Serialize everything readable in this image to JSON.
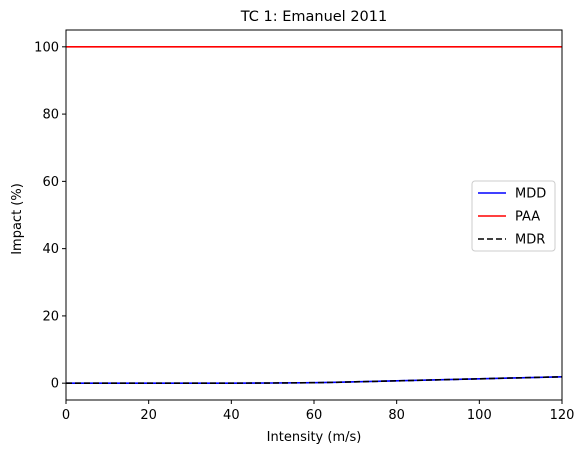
{
  "chart_data": {
    "type": "line",
    "title": "TC 1: Emanuel 2011",
    "xlabel": "Intensity (m/s)",
    "ylabel": "Impact (%)",
    "xlim": [
      0,
      120
    ],
    "ylim": [
      -5,
      105
    ],
    "xticks": [
      0,
      20,
      40,
      60,
      80,
      100,
      120
    ],
    "yticks": [
      0,
      20,
      40,
      60,
      80,
      100
    ],
    "grid": false,
    "legend_position": "center-right",
    "x": [
      0,
      10,
      20,
      30,
      40,
      50,
      60,
      65,
      70,
      80,
      90,
      100,
      110,
      120
    ],
    "series": [
      {
        "name": "MDD",
        "color": "#0000ff",
        "dash": "solid",
        "values": [
          0,
          0,
          0,
          0,
          0,
          0.05,
          0.15,
          0.25,
          0.4,
          0.7,
          1.0,
          1.3,
          1.6,
          1.9
        ]
      },
      {
        "name": "PAA",
        "color": "#ff0000",
        "dash": "solid",
        "values": [
          100,
          100,
          100,
          100,
          100,
          100,
          100,
          100,
          100,
          100,
          100,
          100,
          100,
          100
        ]
      },
      {
        "name": "MDR",
        "color": "#000000",
        "dash": "dashed",
        "values": [
          0,
          0,
          0,
          0,
          0,
          0.05,
          0.15,
          0.25,
          0.4,
          0.7,
          1.0,
          1.3,
          1.6,
          1.9
        ]
      }
    ]
  }
}
